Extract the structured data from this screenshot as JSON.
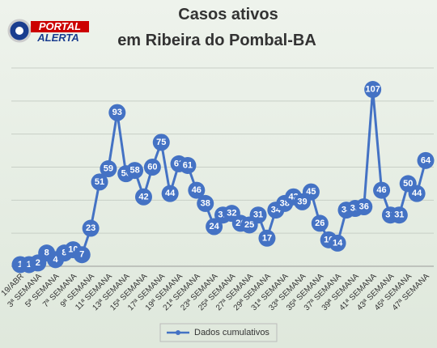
{
  "logo": {
    "line1": "PORTAL",
    "line2": "ALERTA"
  },
  "chart_data": {
    "type": "line",
    "title": [
      "Casos ativos",
      "em Ribeira do Pombal-BA"
    ],
    "categories": [
      "19/ABR",
      null,
      "3ª SEMANA",
      null,
      "5ª SEMANA",
      null,
      "7ª SEMANA",
      null,
      "9ª SEMANA",
      null,
      "11ª SEMANA",
      null,
      "13ª SEMANA",
      null,
      "15ª SEMANA",
      null,
      "17ª SEMANA",
      null,
      "19ª SEMANA",
      null,
      "21ª SEMANA",
      null,
      "23ª SEMANA",
      null,
      "25ª SEMANA",
      null,
      "27ª SEMANA",
      null,
      "29ª SEMANA",
      null,
      "31ª SEMANA",
      null,
      "33ª SEMANA",
      null,
      "35ª SEMANA",
      null,
      "37ª SEMANA",
      null,
      "39ª SEMANA",
      null,
      "41ª SEMANA",
      null,
      "43ª SEMANA",
      null,
      "45ª SEMANA",
      null,
      "47ª SEMANA"
    ],
    "series": [
      {
        "name": "Dados cumulativos",
        "color": "#4472c4",
        "values": [
          1,
          1,
          2,
          8,
          4,
          8,
          10,
          7,
          23,
          51,
          59,
          93,
          56,
          58,
          42,
          60,
          75,
          44,
          62,
          61,
          46,
          38,
          24,
          31,
          32,
          26,
          25,
          31,
          17,
          34,
          38,
          42,
          39,
          45,
          26,
          16,
          14,
          34,
          35,
          36,
          107,
          46,
          31,
          31,
          50,
          44,
          64
        ]
      }
    ],
    "ylim": [
      0,
      120
    ],
    "yticks": [
      0,
      20,
      40,
      60,
      80,
      100,
      120
    ],
    "grid": true,
    "legend": "bottom"
  }
}
